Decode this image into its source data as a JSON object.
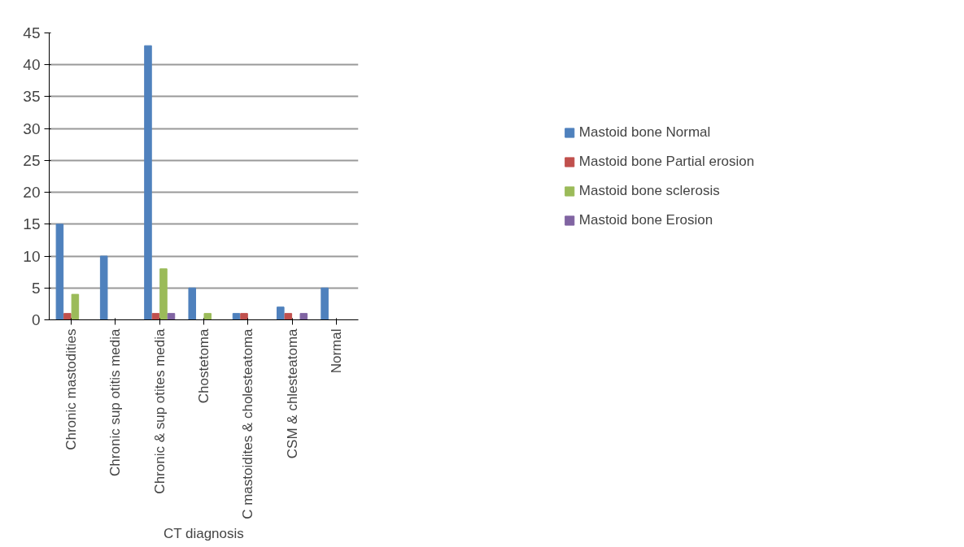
{
  "chart_data": {
    "type": "bar",
    "xlabel": "CT diagnosis",
    "categories": [
      "Chronic mastodities",
      "Chronic sup otitis media",
      "Chronic & sup otites media",
      "Chostetoma",
      "C mastoidites & cholesteatoma",
      "CSM & chlesteatoma",
      "Normal"
    ],
    "series": [
      {
        "name": "Mastoid bone Normal",
        "color": "#4f81bd",
        "values": [
          15,
          10,
          43,
          5,
          1,
          2,
          5
        ]
      },
      {
        "name": "Mastoid bone Partial erosion",
        "color": "#c0504d",
        "values": [
          1,
          0,
          1,
          0,
          1,
          1,
          0
        ]
      },
      {
        "name": "Mastoid bone sclerosis",
        "color": "#9bbb59",
        "values": [
          4,
          0,
          8,
          1,
          0,
          0,
          0
        ]
      },
      {
        "name": "Mastoid bone Erosion",
        "color": "#8064a2",
        "values": [
          0,
          0,
          1,
          0,
          0,
          1,
          0
        ]
      }
    ],
    "ylim": [
      0,
      45
    ],
    "yticks": [
      0,
      5,
      10,
      15,
      20,
      25,
      30,
      35,
      40,
      45
    ],
    "grid": "y",
    "legend": "right"
  }
}
